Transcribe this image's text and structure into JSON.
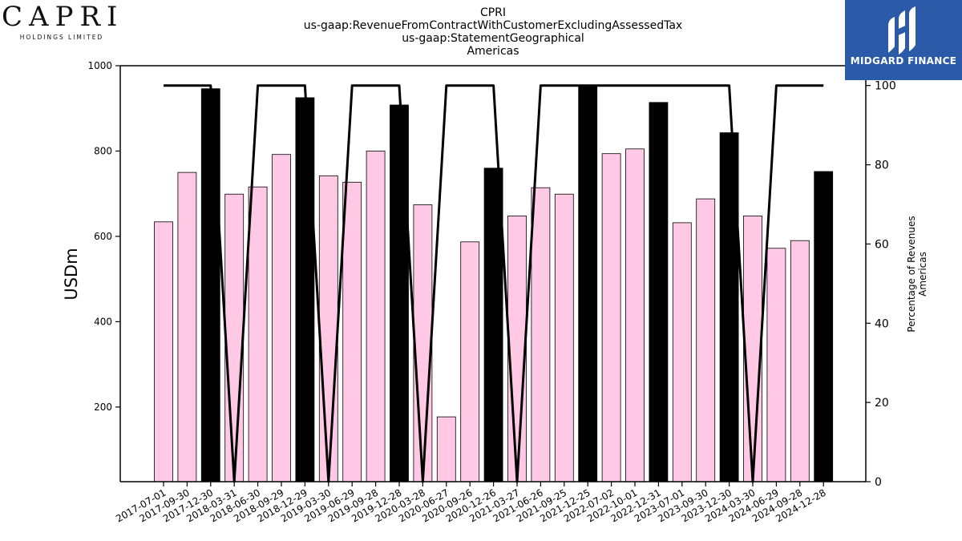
{
  "logos": {
    "left_text": "CAPRI",
    "left_sub": "HOLDINGS LIMITED",
    "right_text": "MIDGARD FINANCE"
  },
  "colors": {
    "bar_default": "#ffc9e5",
    "bar_highlight": "#000000",
    "line": "#000000",
    "logo_bg": "#2b5aa8"
  },
  "chart_data": {
    "type": "bar",
    "title_lines": [
      "CPRI",
      "us-gaap:RevenueFromContractWithCustomerExcludingAssessedTax",
      "us-gaap:StatementGeographical",
      "Americas"
    ],
    "ylabel": "USDm",
    "y2label_lines": [
      "Percentage of Revenues",
      "Americas"
    ],
    "ylim": [
      25,
      1000
    ],
    "y_ticks": [
      200,
      400,
      600,
      800,
      1000
    ],
    "y2lim": [
      0,
      105
    ],
    "y2_ticks": [
      0,
      20,
      40,
      60,
      80,
      100
    ],
    "categories": [
      "2017-07-01",
      "2017-09-30",
      "2017-12-30",
      "2018-03-31",
      "2018-06-30",
      "2018-09-29",
      "2018-12-29",
      "2019-03-30",
      "2019-06-29",
      "2019-09-28",
      "2019-12-28",
      "2020-03-28",
      "2020-06-27",
      "2020-09-26",
      "2020-12-26",
      "2021-03-27",
      "2021-06-26",
      "2021-09-25",
      "2021-12-25",
      "2022-07-02",
      "2022-10-01",
      "2022-12-31",
      "2023-07-01",
      "2023-09-30",
      "2023-12-30",
      "2024-03-30",
      "2024-06-29",
      "2024-09-28",
      "2024-12-28"
    ],
    "series": [
      {
        "type": "bar",
        "values": [
          634,
          750,
          946,
          699,
          716,
          792,
          925,
          742,
          727,
          800,
          908,
          674,
          177,
          587,
          760,
          648,
          714,
          699,
          955,
          794,
          805,
          914,
          632,
          688,
          843,
          648,
          572,
          590,
          752
        ],
        "highlight": [
          false,
          false,
          true,
          false,
          false,
          false,
          true,
          false,
          false,
          false,
          true,
          false,
          false,
          false,
          true,
          false,
          false,
          false,
          true,
          false,
          false,
          true,
          false,
          false,
          true,
          false,
          false,
          false,
          true
        ]
      },
      {
        "type": "line",
        "axis": "right",
        "values": [
          100,
          100,
          100,
          0,
          100,
          100,
          100,
          0,
          100,
          100,
          100,
          0,
          100,
          100,
          100,
          0,
          100,
          100,
          100,
          100,
          100,
          100,
          100,
          100,
          100,
          0,
          100,
          100,
          100
        ]
      }
    ],
    "grid": false,
    "legend": "none"
  }
}
